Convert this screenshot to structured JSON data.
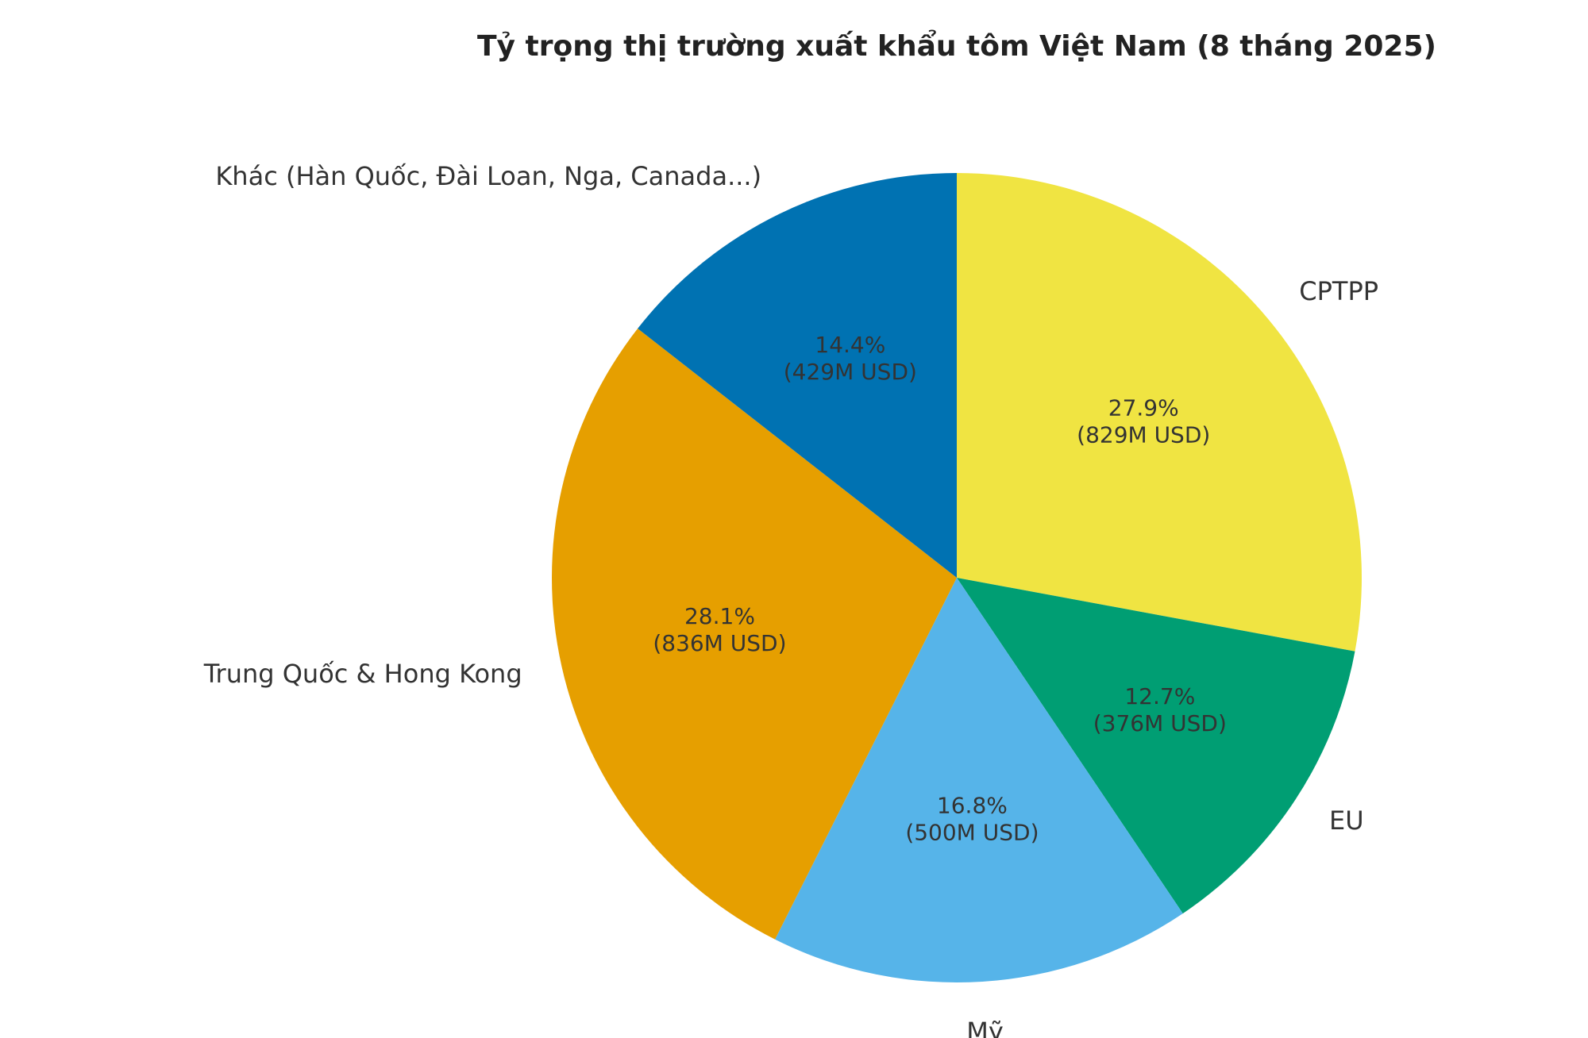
{
  "chart_data": {
    "type": "pie",
    "title": "Tỷ trọng thị trường xuất khẩu tôm Việt Nam (8 tháng 2025)",
    "categories": [
      "CPTPP",
      "EU",
      "Mỹ",
      "Trung Quốc & Hong Kong",
      "Khác (Hàn Quốc, Đài Loan, Nga, Canada...)"
    ],
    "values": [
      829,
      376,
      500,
      836,
      429
    ],
    "value_labels": [
      "(829M USD)",
      "(376M USD)",
      "(500M USD)",
      "(836M USD)",
      "(429M USD)"
    ],
    "percent_labels": [
      "27.9%",
      "12.7%",
      "16.8%",
      "28.1%",
      "14.4%"
    ],
    "colors": [
      "#f0e442",
      "#009e73",
      "#56b4e9",
      "#e69f00",
      "#0072b2"
    ]
  }
}
